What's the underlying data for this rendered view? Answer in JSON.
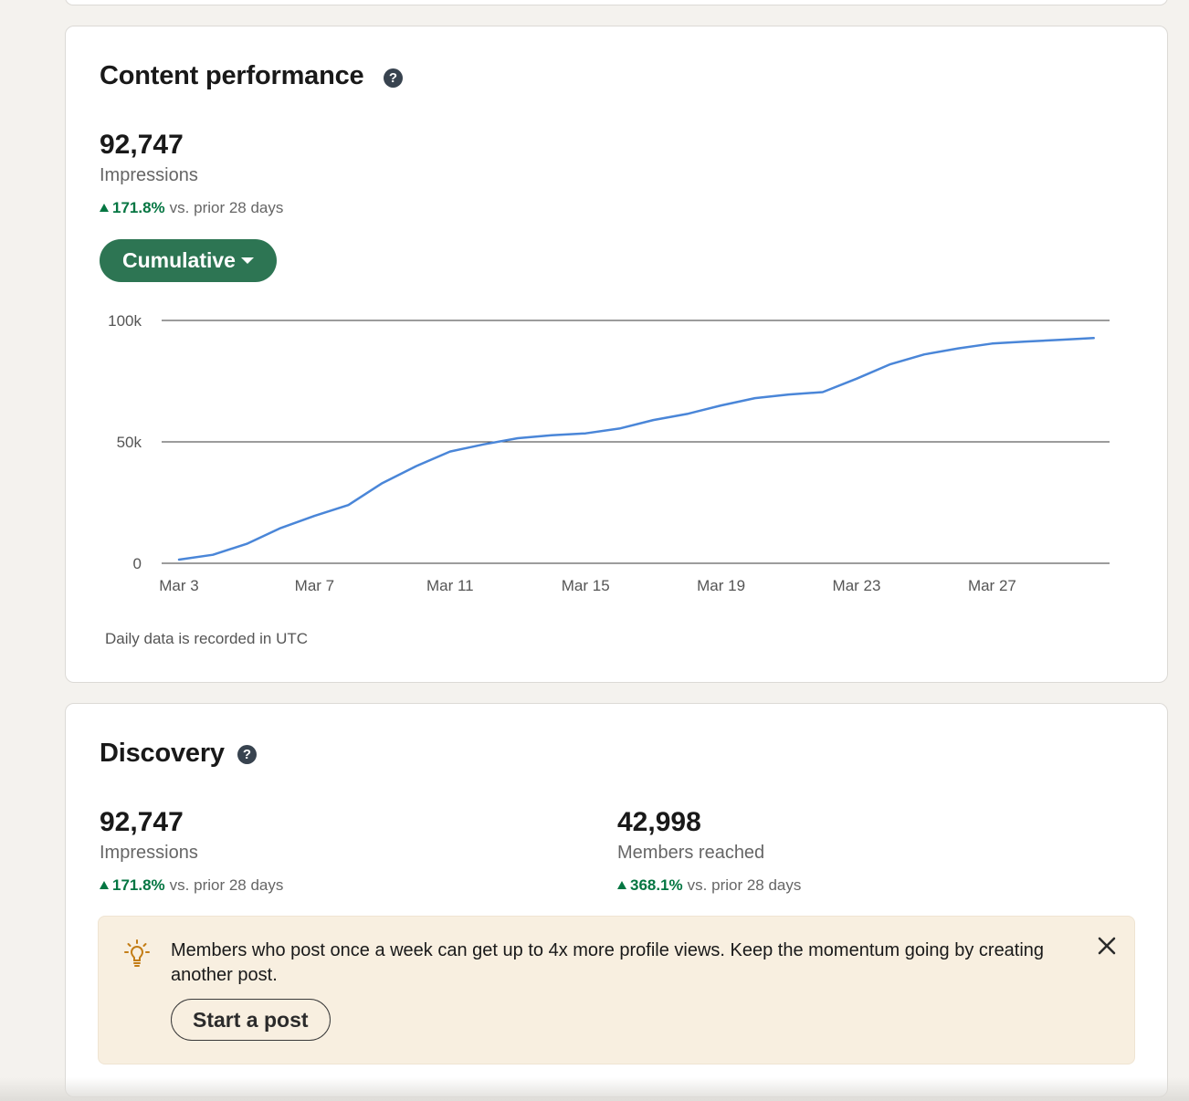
{
  "content_performance": {
    "title": "Content performance",
    "help_icon": "question-mark-icon",
    "impressions_value": "92,747",
    "impressions_label": "Impressions",
    "delta_pct": "171.8%",
    "delta_text": "vs. prior 28 days",
    "dropdown_label": "Cumulative",
    "footnote": "Daily data is recorded in UTC"
  },
  "chart_data": {
    "type": "line",
    "title": "",
    "xlabel": "",
    "ylabel": "",
    "ylim": [
      0,
      100000
    ],
    "y_ticks": [
      0,
      50000,
      100000
    ],
    "y_tick_labels": [
      "0",
      "50k",
      "100k"
    ],
    "x_tick_labels": [
      "Mar 3",
      "Mar 7",
      "Mar 11",
      "Mar 15",
      "Mar 19",
      "Mar 23",
      "Mar 27"
    ],
    "grid": true,
    "line_color": "#4a86d8",
    "x": [
      "Mar 3",
      "Mar 4",
      "Mar 5",
      "Mar 6",
      "Mar 7",
      "Mar 8",
      "Mar 9",
      "Mar 10",
      "Mar 11",
      "Mar 12",
      "Mar 13",
      "Mar 14",
      "Mar 15",
      "Mar 16",
      "Mar 17",
      "Mar 18",
      "Mar 19",
      "Mar 20",
      "Mar 21",
      "Mar 22",
      "Mar 23",
      "Mar 24",
      "Mar 25",
      "Mar 26",
      "Mar 27",
      "Mar 28",
      "Mar 29",
      "Mar 30"
    ],
    "series": [
      {
        "values": [
          1500,
          3500,
          8000,
          14500,
          19500,
          24000,
          33000,
          40000,
          46000,
          49000,
          51500,
          52700,
          53500,
          55500,
          59000,
          61500,
          65000,
          68000,
          69500,
          70500,
          76000,
          82000,
          86000,
          88500,
          90500,
          91300,
          92000,
          92747
        ]
      }
    ]
  },
  "discovery": {
    "title": "Discovery",
    "help_icon": "question-mark-icon",
    "impressions_value": "92,747",
    "impressions_label": "Impressions",
    "impressions_delta_pct": "171.8%",
    "impressions_delta_text": "vs. prior 28 days",
    "members_value": "42,998",
    "members_label": "Members reached",
    "members_delta_pct": "368.1%",
    "members_delta_text": "vs. prior 28 days",
    "tip_text": "Members who post once a week can get up to 4x more profile views. Keep the momentum going by creating another post.",
    "tip_button_label": "Start a post",
    "tip_icon": "lightbulb-icon",
    "close_icon": "close-icon"
  },
  "colors": {
    "accent_green": "#2d7553",
    "delta_green": "#057642",
    "line_blue": "#4a86d8",
    "tip_background": "#f8efe0",
    "bulb_orange": "#c37d16"
  }
}
